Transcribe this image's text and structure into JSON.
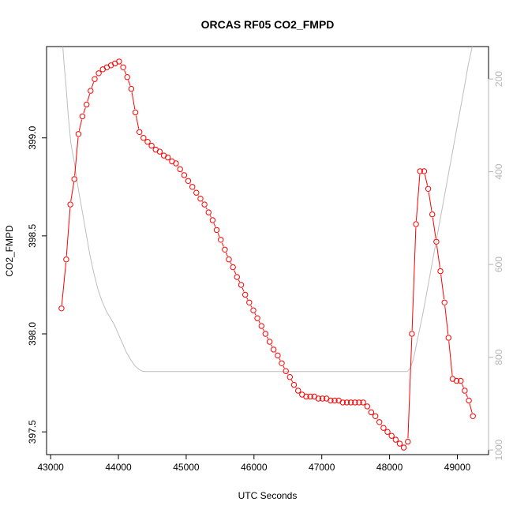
{
  "chart_data": {
    "type": "line",
    "title": "ORCAS RF05 CO2_FMPD",
    "xlabel": "UTC Seconds",
    "ylabel": "CO2_FMPD",
    "xlim": [
      42940,
      49460
    ],
    "ylim": [
      397.384,
      399.466
    ],
    "x_ticks": [
      "43000",
      "44000",
      "45000",
      "46000",
      "47000",
      "48000",
      "49000"
    ],
    "y_ticks": [
      "397.5",
      "398.0",
      "398.5",
      "399.0"
    ],
    "y2_ticks": [
      "200",
      "400",
      "600",
      "800",
      "1000"
    ],
    "y2lim": [
      1010,
      130
    ],
    "grid": false,
    "colors": {
      "series": "#ff0000",
      "secondary": "#bebebe",
      "axis": "#000000",
      "right_axis": "#b5b5b5"
    },
    "series": [
      {
        "marker": "open-circle",
        "x": [
          43160,
          43230,
          43290,
          43350,
          43410,
          43470,
          43530,
          43590,
          43650,
          43710,
          43770,
          43830,
          43890,
          43950,
          44010,
          44070,
          44130,
          44190,
          44250,
          44310,
          44370,
          44430,
          44490,
          44550,
          44610,
          44670,
          44730,
          44790,
          44850,
          44910,
          44970,
          45030,
          45090,
          45150,
          45210,
          45270,
          45330,
          45390,
          45450,
          45510,
          45570,
          45630,
          45690,
          45750,
          45810,
          45870,
          45930,
          45990,
          46050,
          46110,
          46170,
          46230,
          46290,
          46350,
          46410,
          46470,
          46530,
          46590,
          46650,
          46710,
          46770,
          46830,
          46890,
          46950,
          47010,
          47070,
          47130,
          47190,
          47250,
          47310,
          47370,
          47430,
          47490,
          47550,
          47610,
          47670,
          47730,
          47790,
          47850,
          47910,
          47970,
          48030,
          48090,
          48150,
          48210,
          48270,
          48330,
          48390,
          48450,
          48510,
          48570,
          48630,
          48690,
          48750,
          48810,
          48870,
          48930,
          48990,
          49050,
          49110,
          49170,
          49230
        ],
        "y": [
          398.13,
          398.38,
          398.66,
          398.79,
          399.02,
          399.11,
          399.17,
          399.24,
          399.3,
          399.33,
          399.35,
          399.36,
          399.37,
          399.38,
          399.39,
          399.36,
          399.31,
          399.25,
          399.13,
          399.03,
          399.0,
          398.98,
          398.96,
          398.94,
          398.93,
          398.91,
          398.9,
          398.88,
          398.87,
          398.84,
          398.81,
          398.78,
          398.75,
          398.72,
          398.69,
          398.66,
          398.62,
          398.58,
          398.53,
          398.48,
          398.43,
          398.38,
          398.34,
          398.29,
          398.25,
          398.2,
          398.16,
          398.12,
          398.08,
          398.04,
          398.0,
          397.96,
          397.92,
          397.89,
          397.85,
          397.81,
          397.78,
          397.74,
          397.71,
          397.69,
          397.68,
          397.68,
          397.68,
          397.67,
          397.67,
          397.67,
          397.66,
          397.66,
          397.66,
          397.65,
          397.65,
          397.65,
          397.65,
          397.65,
          397.65,
          397.63,
          397.6,
          397.58,
          397.55,
          397.52,
          397.5,
          397.48,
          397.46,
          397.44,
          397.42,
          397.45,
          398.0,
          398.56,
          398.83,
          398.83,
          398.74,
          398.61,
          398.47,
          398.32,
          398.16,
          397.98,
          397.77,
          397.76,
          397.76,
          397.71,
          397.66,
          397.58
        ]
      },
      {
        "axis": "right",
        "x": [
          43180,
          43200,
          43230,
          43260,
          43300,
          43350,
          43400,
          43460,
          43520,
          43580,
          43640,
          43700,
          43760,
          43820,
          43880,
          43940,
          44000,
          44060,
          44120,
          44180,
          44240,
          44300,
          44350,
          44400,
          44500,
          45000,
          46000,
          47000,
          48000,
          48260,
          48300,
          48350,
          48400,
          48500,
          48600,
          48700,
          48800,
          48900,
          49000,
          49100,
          49160,
          49220
        ],
        "y": [
          130,
          170,
          220,
          280,
          340,
          380,
          430,
          480,
          530,
          580,
          620,
          655,
          680,
          700,
          715,
          730,
          750,
          770,
          790,
          805,
          818,
          826,
          830,
          831,
          831,
          831,
          831,
          831,
          831,
          831,
          825,
          805,
          770,
          700,
          620,
          540,
          460,
          380,
          300,
          220,
          170,
          130
        ]
      }
    ]
  }
}
